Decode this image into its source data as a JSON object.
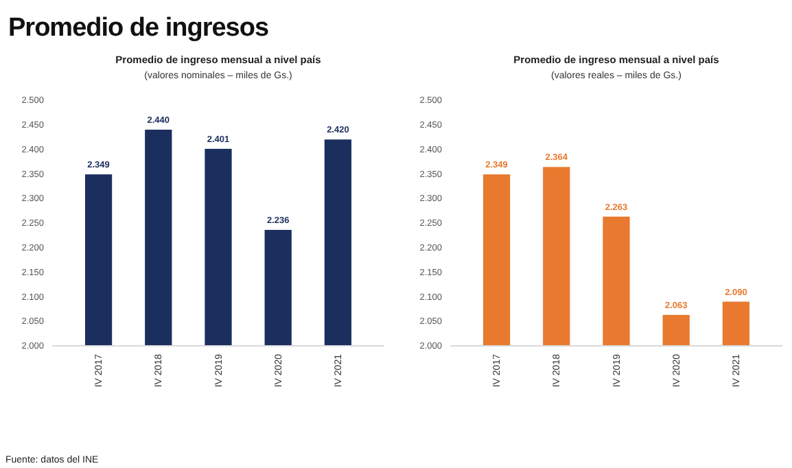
{
  "chart_data": [
    {
      "type": "bar",
      "title": "Promedio de ingreso mensual a nivel país",
      "subtitle": "(valores nominales – miles de Gs.)",
      "categories": [
        "IV 2017",
        "IV 2018",
        "IV 2019",
        "IV 2020",
        "IV 2021"
      ],
      "values": [
        2349,
        2440,
        2401,
        2236,
        2420
      ],
      "value_labels": [
        "2.349",
        "2.440",
        "2.401",
        "2.236",
        "2.420"
      ],
      "color": "#1b2f5e",
      "ylim": [
        2000,
        2500
      ],
      "yticks": [
        {
          "value": 2000,
          "label": "2.000"
        },
        {
          "value": 2050,
          "label": "2.050"
        },
        {
          "value": 2100,
          "label": "2.100"
        },
        {
          "value": 2150,
          "label": "2.150"
        },
        {
          "value": 2200,
          "label": "2.200"
        },
        {
          "value": 2250,
          "label": "2.250"
        },
        {
          "value": 2300,
          "label": "2.300"
        },
        {
          "value": 2350,
          "label": "2.350"
        },
        {
          "value": 2400,
          "label": "2.400"
        },
        {
          "value": 2450,
          "label": "2.450"
        },
        {
          "value": 2500,
          "label": "2.500"
        }
      ],
      "annotations": [
        "Promedio de ingresos"
      ]
    },
    {
      "type": "bar",
      "title": "Promedio de ingreso mensual a nivel país",
      "subtitle": "(valores reales – miles de Gs.)",
      "categories": [
        "IV 2017",
        "IV 2018",
        "IV 2019",
        "IV 2020",
        "IV 2021"
      ],
      "values": [
        2349,
        2364,
        2263,
        2063,
        2090
      ],
      "value_labels": [
        "2.349",
        "2.364",
        "2.263",
        "2.063",
        "2.090"
      ],
      "color": "#e8792e",
      "ylim": [
        2000,
        2500
      ],
      "yticks": [
        {
          "value": 2000,
          "label": "2.000"
        },
        {
          "value": 2050,
          "label": "2.050"
        },
        {
          "value": 2100,
          "label": "2.100"
        },
        {
          "value": 2150,
          "label": "2.150"
        },
        {
          "value": 2200,
          "label": "2.200"
        },
        {
          "value": 2250,
          "label": "2.250"
        },
        {
          "value": 2300,
          "label": "2.300"
        },
        {
          "value": 2350,
          "label": "2.350"
        },
        {
          "value": 2400,
          "label": "2.400"
        },
        {
          "value": 2450,
          "label": "2.450"
        },
        {
          "value": 2500,
          "label": "2.500"
        }
      ],
      "annotations": [
        "Fuente: datos del INE"
      ]
    }
  ]
}
